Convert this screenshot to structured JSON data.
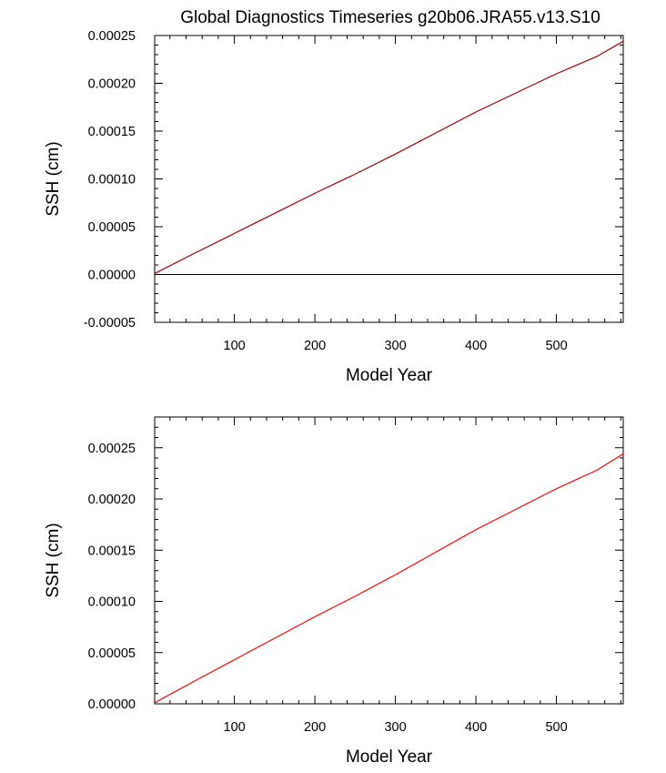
{
  "figure_title": "Global Diagnostics Timeseries g20b06.JRA55.v13.S10",
  "chart_data": [
    {
      "type": "line",
      "title": "Global Diagnostics Timeseries g20b06.JRA55.v13.S10",
      "xlabel": "Model Year",
      "ylabel": "SSH (cm)",
      "xlim": [
        1,
        583
      ],
      "ylim": [
        -5e-05,
        0.00025
      ],
      "xticks": [
        100,
        200,
        300,
        400,
        500
      ],
      "xtick_labels": [
        "100",
        "200",
        "300",
        "400",
        "500"
      ],
      "yticks": [
        -5e-05,
        0,
        5e-05,
        0.0001,
        0.00015,
        0.0002,
        0.00025
      ],
      "ytick_labels": [
        "-0.00005",
        "0.00000",
        "0.00005",
        "0.00010",
        "0.00015",
        "0.00020",
        "0.00025"
      ],
      "reference_line_y": 0,
      "grid": false,
      "series": [
        {
          "color": "#a00000",
          "x": [
            1,
            50,
            100,
            150,
            200,
            250,
            300,
            350,
            400,
            450,
            500,
            550,
            583
          ],
          "values": [
            1e-06,
            2.2e-05,
            4.3e-05,
            6.4e-05,
            8.5e-05,
            0.000105,
            0.000126,
            0.000148,
            0.00017,
            0.00019,
            0.00021,
            0.000228,
            0.000244
          ]
        }
      ]
    },
    {
      "type": "line",
      "title": "",
      "xlabel": "Model Year",
      "ylabel": "SSH (cm)",
      "xlim": [
        1,
        583
      ],
      "ylim": [
        0,
        0.00028
      ],
      "xticks": [
        100,
        200,
        300,
        400,
        500
      ],
      "xtick_labels": [
        "100",
        "200",
        "300",
        "400",
        "500"
      ],
      "yticks": [
        0,
        5e-05,
        0.0001,
        0.00015,
        0.0002,
        0.00025
      ],
      "ytick_labels": [
        "0.00000",
        "0.00005",
        "0.00010",
        "0.00015",
        "0.00020",
        "0.00025"
      ],
      "grid": false,
      "series": [
        {
          "color": "#ff0000",
          "x": [
            1,
            50,
            100,
            150,
            200,
            250,
            300,
            350,
            400,
            450,
            500,
            550,
            583
          ],
          "values": [
            1e-06,
            2.2e-05,
            4.3e-05,
            6.4e-05,
            8.5e-05,
            0.000105,
            0.000126,
            0.000148,
            0.00017,
            0.00019,
            0.00021,
            0.000228,
            0.000244
          ]
        }
      ]
    }
  ]
}
